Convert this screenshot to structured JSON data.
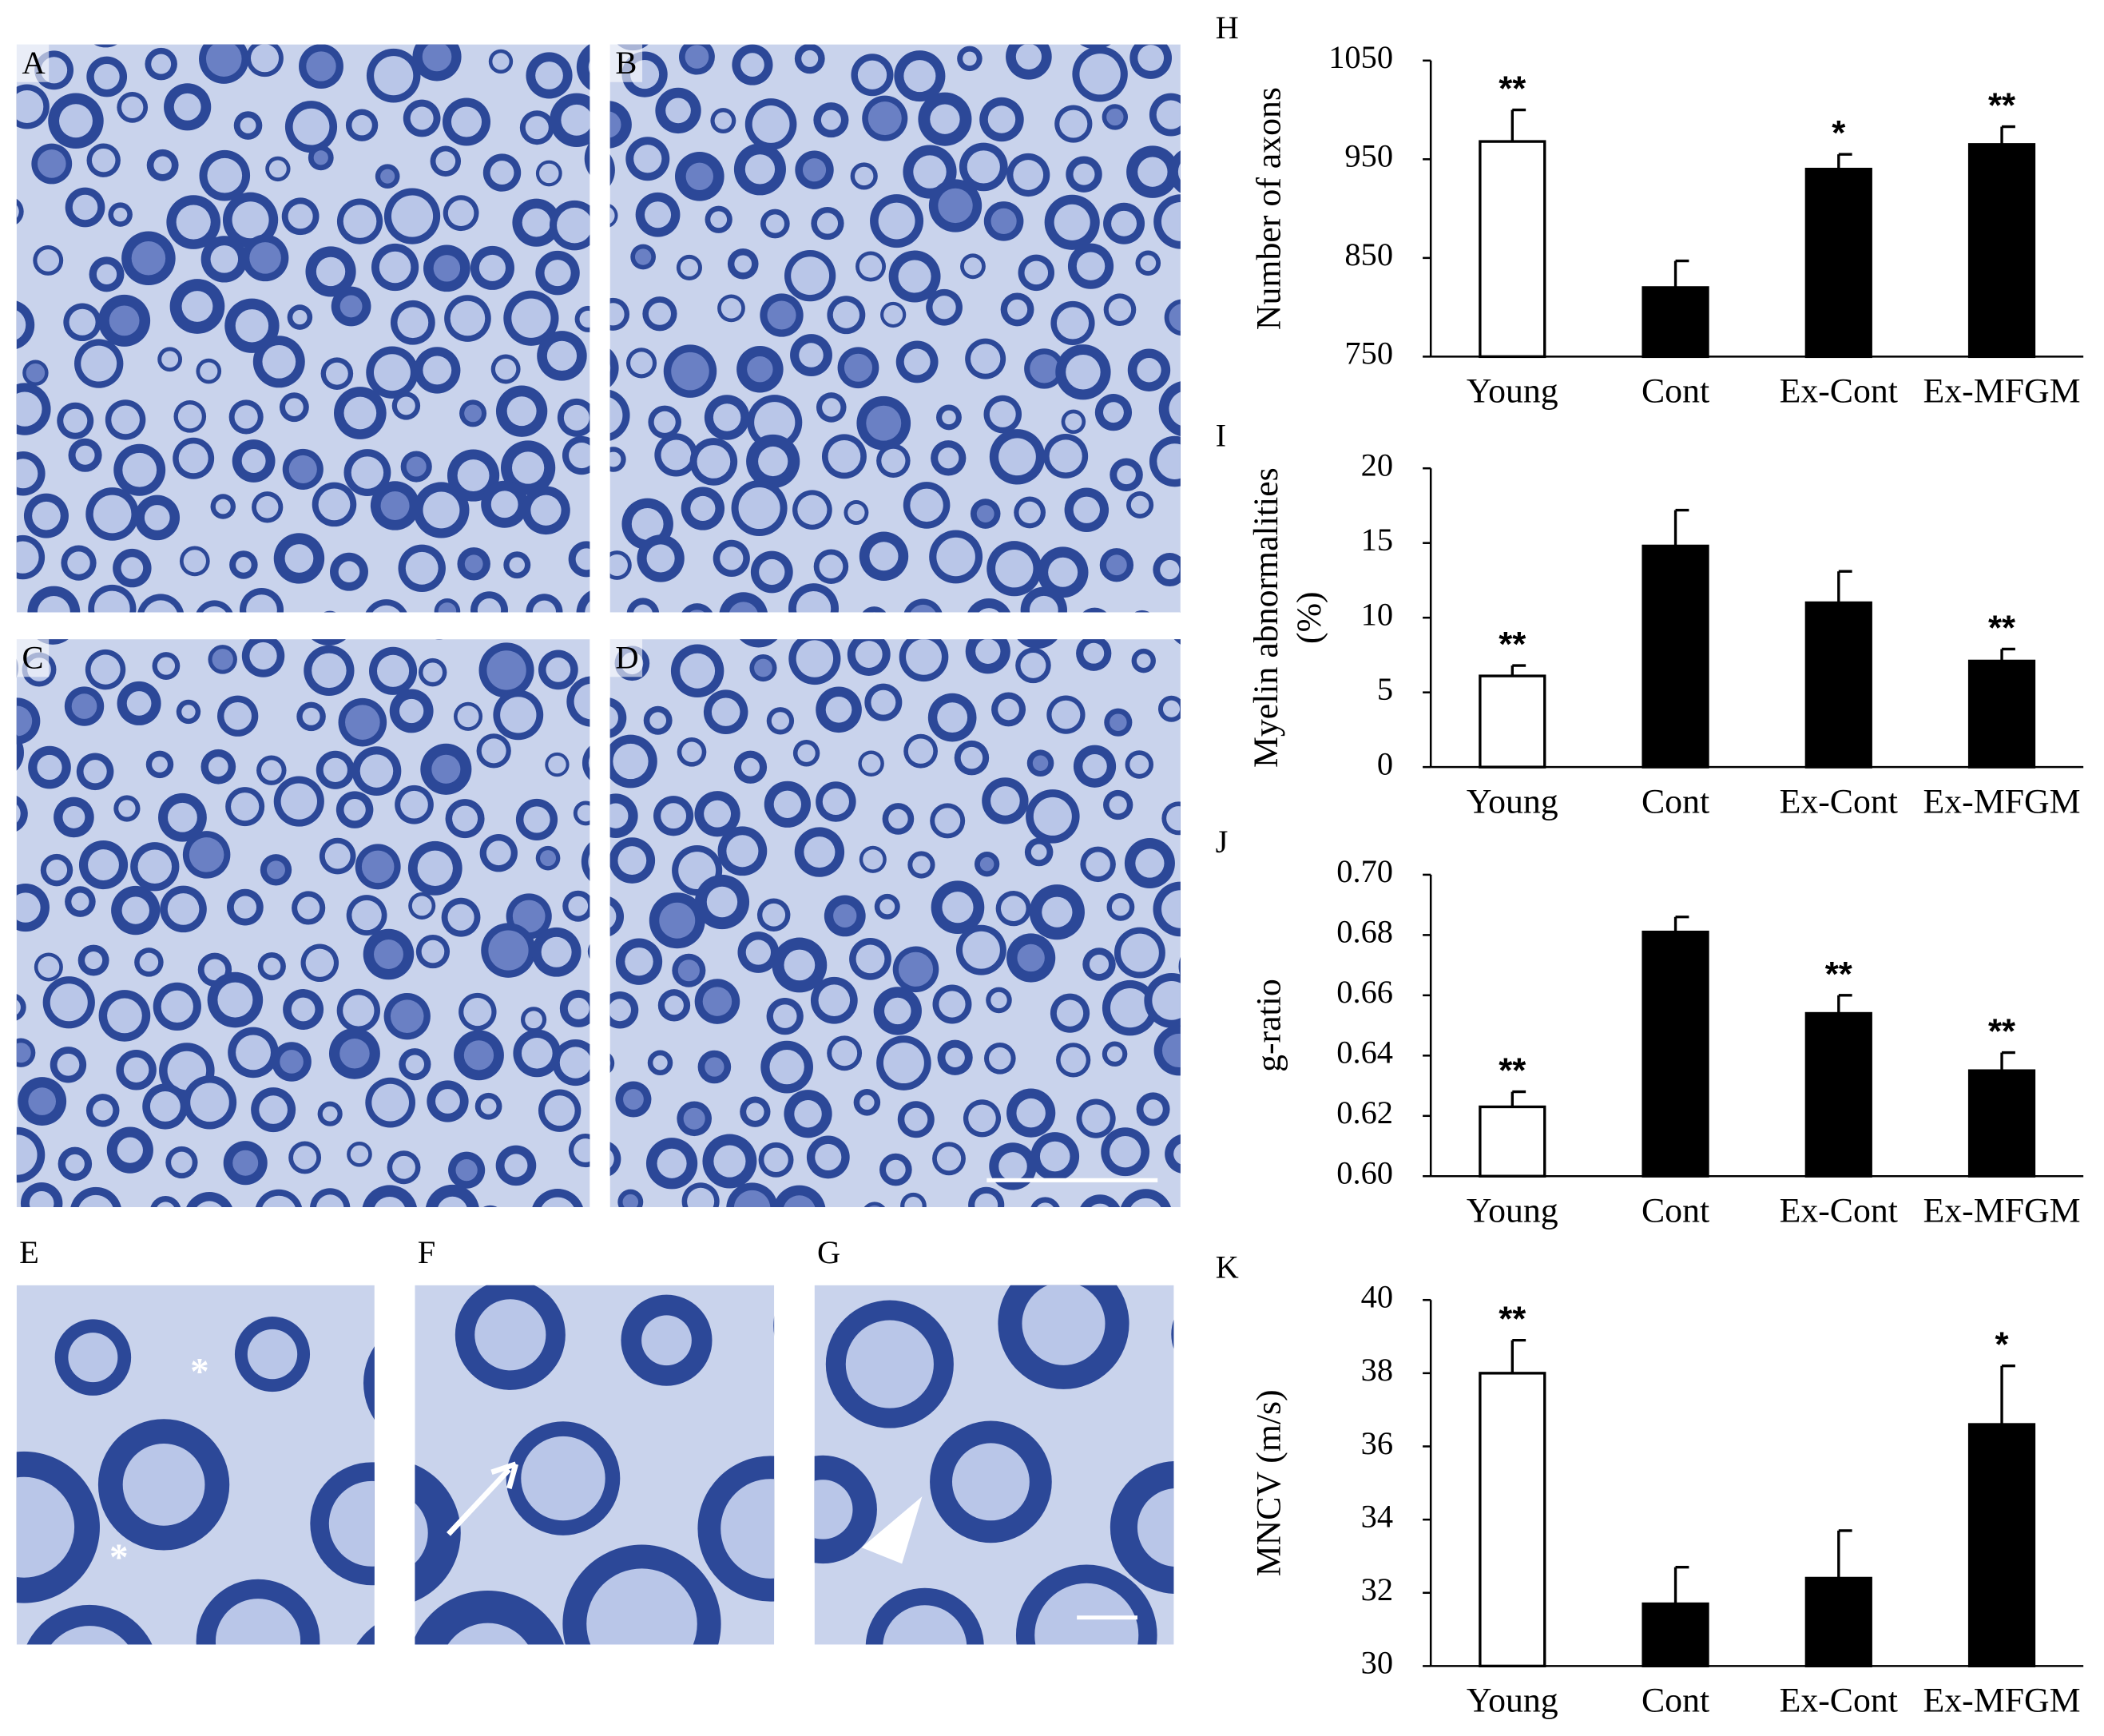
{
  "micrographs": {
    "labels": [
      "A",
      "B",
      "C",
      "D",
      "E",
      "F",
      "G"
    ],
    "asterisks": [
      "*",
      "*"
    ]
  },
  "chart_data": [
    {
      "type": "bar",
      "panel_label": "H",
      "ylabel": "Number of axons",
      "categories": [
        "Young",
        "Cont",
        "Ex-Cont",
        "Ex-MFGM"
      ],
      "values": [
        968,
        820,
        940,
        965
      ],
      "errors": [
        32,
        27,
        15,
        18
      ],
      "annotations": [
        "**",
        null,
        "*",
        "**"
      ],
      "colors": [
        "#ffffff",
        "#000000",
        "#000000",
        "#000000"
      ],
      "ylim": [
        750,
        1050
      ],
      "yticks": [
        750,
        850,
        950,
        1050
      ]
    },
    {
      "type": "bar",
      "panel_label": "I",
      "ylabel": [
        "Myelin abnormalities",
        "(%)"
      ],
      "categories": [
        "Young",
        "Cont",
        "Ex-Cont",
        "Ex-MFGM"
      ],
      "values": [
        6.1,
        14.8,
        11.0,
        7.1
      ],
      "errors": [
        0.7,
        2.4,
        2.1,
        0.8
      ],
      "annotations": [
        "**",
        null,
        null,
        "**"
      ],
      "colors": [
        "#ffffff",
        "#000000",
        "#000000",
        "#000000"
      ],
      "ylim": [
        0,
        20
      ],
      "yticks": [
        0,
        5,
        10,
        15,
        20
      ]
    },
    {
      "type": "bar",
      "panel_label": "J",
      "ylabel": "g-ratio",
      "categories": [
        "Young",
        "Cont",
        "Ex-Cont",
        "Ex-MFGM"
      ],
      "values": [
        0.623,
        0.681,
        0.654,
        0.635
      ],
      "errors": [
        0.005,
        0.005,
        0.006,
        0.006
      ],
      "annotations": [
        "**",
        null,
        "**",
        "**"
      ],
      "colors": [
        "#ffffff",
        "#000000",
        "#000000",
        "#000000"
      ],
      "ylim": [
        0.6,
        0.7
      ],
      "yticks": [
        {
          "value": 0.6,
          "label": "0.60"
        },
        0.62,
        0.64,
        0.66,
        0.68,
        {
          "value": 0.7,
          "label": "0.70"
        }
      ]
    },
    {
      "type": "bar",
      "panel_label": "K",
      "ylabel": "MNCV (m/s)",
      "categories": [
        "Young",
        "Cont",
        "Ex-Cont",
        "Ex-MFGM"
      ],
      "values": [
        38.0,
        31.7,
        32.4,
        36.6
      ],
      "errors": [
        0.9,
        1.0,
        1.3,
        1.6
      ],
      "annotations": [
        "**",
        null,
        null,
        "*"
      ],
      "colors": [
        "#ffffff",
        "#000000",
        "#000000",
        "#000000"
      ],
      "ylim": [
        30,
        40
      ],
      "yticks": [
        30,
        32,
        34,
        36,
        38,
        40
      ]
    }
  ]
}
